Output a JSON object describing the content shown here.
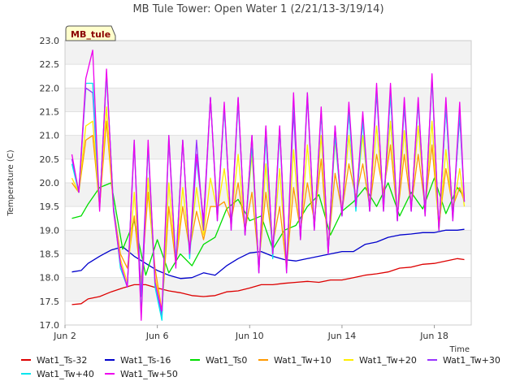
{
  "chart_data": {
    "type": "line",
    "title": "MB Tule Tower: Open Water 1 (2/21/13-3/19/14)",
    "ylabel": "Temperature (C)",
    "xlabel": "Time",
    "badge": "MB_tule",
    "ylim": [
      17.0,
      23.0
    ],
    "xlim": [
      2.0,
      19.6
    ],
    "yticks": [
      "17.0",
      "17.5",
      "18.0",
      "18.5",
      "19.0",
      "19.5",
      "20.0",
      "20.5",
      "21.0",
      "21.5",
      "22.0",
      "22.5",
      "23.0"
    ],
    "xticks": [
      {
        "value": 2,
        "label": "Jun 2"
      },
      {
        "value": 6,
        "label": "Jun 6"
      },
      {
        "value": 10,
        "label": "Jun 10"
      },
      {
        "value": 14,
        "label": "Jun 14"
      },
      {
        "value": 18,
        "label": "Jun 18"
      }
    ],
    "grid": true,
    "legend_position": "bottom",
    "series": [
      {
        "name": "Wat1_Ts-32",
        "color": "#dd0000",
        "x": [
          2.3,
          2.7,
          3.0,
          3.5,
          4.0,
          4.5,
          5.0,
          5.5,
          6.0,
          6.5,
          7.0,
          7.5,
          8.0,
          8.5,
          9.0,
          9.5,
          10.0,
          10.5,
          11.0,
          11.5,
          12.0,
          12.5,
          13.0,
          13.5,
          14.0,
          14.5,
          15.0,
          15.5,
          16.0,
          16.5,
          17.0,
          17.5,
          18.0,
          18.5,
          19.0,
          19.3
        ],
        "values": [
          17.43,
          17.45,
          17.55,
          17.6,
          17.7,
          17.78,
          17.85,
          17.85,
          17.78,
          17.72,
          17.68,
          17.62,
          17.6,
          17.62,
          17.7,
          17.72,
          17.78,
          17.85,
          17.85,
          17.88,
          17.9,
          17.92,
          17.9,
          17.95,
          17.95,
          18.0,
          18.05,
          18.08,
          18.12,
          18.2,
          18.22,
          18.28,
          18.3,
          18.35,
          18.4,
          18.38
        ]
      },
      {
        "name": "Wat1_Ts-16",
        "color": "#0000cc",
        "x": [
          2.3,
          2.7,
          3.0,
          3.5,
          4.0,
          4.5,
          5.0,
          5.5,
          6.0,
          6.5,
          7.0,
          7.5,
          8.0,
          8.5,
          9.0,
          9.5,
          10.0,
          10.5,
          11.0,
          11.5,
          12.0,
          12.5,
          13.0,
          13.5,
          14.0,
          14.5,
          15.0,
          15.5,
          16.0,
          16.5,
          17.0,
          17.5,
          18.0,
          18.5,
          19.0,
          19.3
        ],
        "values": [
          18.12,
          18.15,
          18.3,
          18.45,
          18.58,
          18.65,
          18.45,
          18.3,
          18.15,
          18.05,
          17.98,
          18.0,
          18.1,
          18.05,
          18.25,
          18.4,
          18.52,
          18.55,
          18.45,
          18.38,
          18.35,
          18.4,
          18.45,
          18.5,
          18.55,
          18.55,
          18.7,
          18.75,
          18.85,
          18.9,
          18.92,
          18.95,
          18.95,
          19.0,
          19.0,
          19.02
        ]
      },
      {
        "name": "Wat1_Ts0",
        "color": "#00dd00",
        "x": [
          2.3,
          2.7,
          3.0,
          3.5,
          4.0,
          4.5,
          5.0,
          5.5,
          6.0,
          6.5,
          7.0,
          7.5,
          8.0,
          8.5,
          9.0,
          9.5,
          10.0,
          10.5,
          11.0,
          11.5,
          12.0,
          12.5,
          13.0,
          13.5,
          14.0,
          14.5,
          15.0,
          15.5,
          16.0,
          16.5,
          17.0,
          17.5,
          18.0,
          18.5,
          19.0,
          19.3
        ],
        "values": [
          19.25,
          19.3,
          19.55,
          19.9,
          20.0,
          18.6,
          19.2,
          18.05,
          18.8,
          18.1,
          18.5,
          18.25,
          18.7,
          18.85,
          19.45,
          19.65,
          19.2,
          19.3,
          18.6,
          19.0,
          19.1,
          19.5,
          19.75,
          18.9,
          19.4,
          19.6,
          19.9,
          19.5,
          20.0,
          19.3,
          19.8,
          19.45,
          20.1,
          19.35,
          19.9,
          19.7
        ]
      },
      {
        "name": "Wat1_Tw+10",
        "color": "#ff9900",
        "x": [
          2.3,
          2.6,
          2.9,
          3.2,
          3.5,
          3.8,
          4.1,
          4.4,
          4.7,
          5.0,
          5.3,
          5.6,
          5.9,
          6.2,
          6.5,
          6.8,
          7.1,
          7.4,
          7.7,
          8.0,
          8.3,
          8.6,
          8.9,
          9.2,
          9.5,
          9.8,
          10.1,
          10.4,
          10.7,
          11.0,
          11.3,
          11.6,
          11.9,
          12.2,
          12.5,
          12.8,
          13.1,
          13.4,
          13.7,
          14.0,
          14.3,
          14.6,
          14.9,
          15.2,
          15.5,
          15.8,
          16.1,
          16.4,
          16.7,
          17.0,
          17.3,
          17.6,
          17.9,
          18.2,
          18.5,
          18.8,
          19.1,
          19.3
        ],
        "values": [
          20.0,
          19.8,
          20.9,
          21.0,
          19.5,
          21.3,
          19.5,
          18.5,
          18.2,
          19.3,
          17.9,
          19.8,
          18.2,
          17.3,
          19.5,
          18.3,
          19.5,
          18.6,
          19.4,
          18.8,
          19.5,
          19.5,
          19.6,
          19.2,
          20.0,
          19.0,
          19.8,
          18.3,
          19.8,
          18.7,
          19.5,
          18.2,
          19.9,
          19.0,
          20.0,
          19.2,
          20.5,
          18.6,
          20.2,
          19.4,
          20.4,
          19.7,
          20.4,
          19.5,
          20.6,
          19.8,
          20.8,
          19.3,
          20.6,
          19.5,
          20.6,
          19.5,
          20.8,
          19.1,
          20.3,
          19.5,
          19.9,
          19.6
        ]
      },
      {
        "name": "Wat1_Tw+20",
        "color": "#ffee00",
        "x": [
          2.3,
          2.6,
          2.9,
          3.2,
          3.5,
          3.8,
          4.1,
          4.4,
          4.7,
          5.0,
          5.3,
          5.6,
          5.9,
          6.2,
          6.5,
          6.8,
          7.1,
          7.4,
          7.7,
          8.0,
          8.3,
          8.6,
          8.9,
          9.2,
          9.5,
          9.8,
          10.1,
          10.4,
          10.7,
          11.0,
          11.3,
          11.6,
          11.9,
          12.2,
          12.5,
          12.8,
          13.1,
          13.4,
          13.7,
          14.0,
          14.3,
          14.6,
          14.9,
          15.2,
          15.5,
          15.8,
          16.1,
          16.4,
          16.7,
          17.0,
          17.3,
          17.6,
          17.9,
          18.2,
          18.5,
          18.8,
          19.1,
          19.3
        ],
        "values": [
          20.1,
          19.8,
          21.2,
          21.3,
          19.5,
          21.6,
          19.5,
          18.4,
          17.9,
          19.8,
          17.8,
          20.1,
          18.0,
          17.3,
          20.0,
          18.3,
          19.9,
          18.6,
          19.9,
          18.9,
          20.1,
          19.4,
          20.3,
          19.2,
          20.6,
          19.0,
          20.6,
          18.2,
          20.4,
          18.6,
          20.3,
          18.2,
          20.7,
          18.9,
          20.8,
          19.1,
          21.0,
          18.6,
          20.9,
          19.4,
          21.0,
          19.6,
          21.0,
          19.5,
          21.2,
          19.6,
          21.3,
          19.3,
          21.1,
          19.5,
          21.2,
          19.5,
          21.3,
          19.0,
          20.7,
          19.4,
          20.3,
          19.5
        ]
      },
      {
        "name": "Wat1_Tw+30",
        "color": "#9933ff",
        "x": [
          2.3,
          2.6,
          2.9,
          3.2,
          3.5,
          3.8,
          4.1,
          4.4,
          4.7,
          5.0,
          5.3,
          5.6,
          5.9,
          6.2,
          6.5,
          6.8,
          7.1,
          7.4,
          7.7,
          8.0,
          8.3,
          8.6,
          8.9,
          9.2,
          9.5,
          9.8,
          10.1,
          10.4,
          10.7,
          11.0,
          11.3,
          11.6,
          11.9,
          12.2,
          12.5,
          12.8,
          13.1,
          13.4,
          13.7,
          14.0,
          14.3,
          14.6,
          14.9,
          15.2,
          15.5,
          15.8,
          16.1,
          16.4,
          16.7,
          17.0,
          17.3,
          17.6,
          17.9,
          18.2,
          18.5,
          18.8,
          19.1,
          19.3
        ],
        "values": [
          20.5,
          19.8,
          22.0,
          21.9,
          19.5,
          22.3,
          19.5,
          18.3,
          17.8,
          20.8,
          17.6,
          20.8,
          17.9,
          17.2,
          20.9,
          18.3,
          20.9,
          18.5,
          20.9,
          19.0,
          21.8,
          19.3,
          21.6,
          19.1,
          21.8,
          18.9,
          21.0,
          18.1,
          21.2,
          18.5,
          21.2,
          18.2,
          21.5,
          18.8,
          21.8,
          19.0,
          21.5,
          18.5,
          21.2,
          19.3,
          21.5,
          19.5,
          21.4,
          19.4,
          21.9,
          19.5,
          21.9,
          19.2,
          21.6,
          19.4,
          21.7,
          19.4,
          22.2,
          19.0,
          21.6,
          19.3,
          21.4,
          19.6
        ]
      },
      {
        "name": "Wat1_Tw+40",
        "color": "#00e5ee",
        "x": [
          2.3,
          2.6,
          2.9,
          3.2,
          3.5,
          3.8,
          4.1,
          4.4,
          4.7,
          5.0,
          5.3,
          5.6,
          5.9,
          6.2,
          6.5,
          6.8,
          7.1,
          7.4,
          7.7,
          8.0,
          8.3,
          8.6,
          8.9,
          9.2,
          9.5,
          9.8,
          10.1,
          10.4,
          10.7,
          11.0,
          11.3,
          11.6,
          11.9,
          12.2,
          12.5,
          12.8,
          13.1,
          13.4,
          13.7,
          14.0,
          14.3,
          14.6,
          14.9,
          15.2,
          15.5,
          15.8,
          16.1,
          16.4,
          16.7,
          17.0,
          17.3,
          17.6,
          17.9,
          18.2,
          18.5,
          18.8,
          19.1,
          19.3
        ],
        "values": [
          20.4,
          19.8,
          22.1,
          22.1,
          19.5,
          22.3,
          19.5,
          18.2,
          17.8,
          20.9,
          17.2,
          20.8,
          17.8,
          17.1,
          21.0,
          18.3,
          20.9,
          18.4,
          20.5,
          19.2,
          21.8,
          19.2,
          21.6,
          19.0,
          21.7,
          18.9,
          20.8,
          18.1,
          21.0,
          18.4,
          21.1,
          18.1,
          21.8,
          18.8,
          21.9,
          19.0,
          21.5,
          18.5,
          21.0,
          19.3,
          21.5,
          19.4,
          21.3,
          19.4,
          22.0,
          19.4,
          21.9,
          19.2,
          21.7,
          19.4,
          21.7,
          19.3,
          22.2,
          19.0,
          21.6,
          19.2,
          21.5,
          19.6
        ]
      },
      {
        "name": "Wat1_Tw+50",
        "color": "#ee00ee",
        "x": [
          2.3,
          2.6,
          2.9,
          3.2,
          3.5,
          3.8,
          4.1,
          4.4,
          4.7,
          5.0,
          5.3,
          5.6,
          5.9,
          6.2,
          6.5,
          6.8,
          7.1,
          7.4,
          7.7,
          8.0,
          8.3,
          8.6,
          8.9,
          9.2,
          9.5,
          9.8,
          10.1,
          10.4,
          10.7,
          11.0,
          11.3,
          11.6,
          11.9,
          12.2,
          12.5,
          12.8,
          13.1,
          13.4,
          13.7,
          14.0,
          14.3,
          14.6,
          14.9,
          15.2,
          15.5,
          15.8,
          16.1,
          16.4,
          16.7,
          17.0,
          17.3,
          17.6,
          17.9,
          18.2,
          18.5,
          18.8,
          19.1,
          19.3
        ],
        "values": [
          20.6,
          19.8,
          22.2,
          22.8,
          19.4,
          22.4,
          19.4,
          18.3,
          17.8,
          20.9,
          17.1,
          20.9,
          17.9,
          17.3,
          21.0,
          18.2,
          20.9,
          18.5,
          20.6,
          19.2,
          21.8,
          19.2,
          21.7,
          19.0,
          21.8,
          18.9,
          21.0,
          18.1,
          21.2,
          18.5,
          21.2,
          18.1,
          21.9,
          18.8,
          21.9,
          19.0,
          21.6,
          18.5,
          21.2,
          19.3,
          21.7,
          19.5,
          21.5,
          19.4,
          22.1,
          19.4,
          22.1,
          19.2,
          21.8,
          19.4,
          21.8,
          19.3,
          22.3,
          19.0,
          21.8,
          19.2,
          21.7,
          19.6
        ]
      }
    ]
  }
}
